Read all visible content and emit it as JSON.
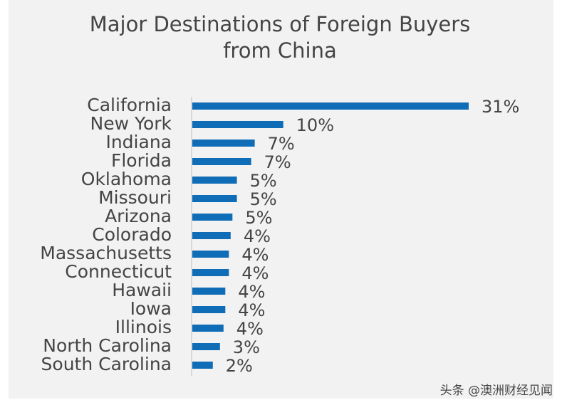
{
  "chart_data": {
    "type": "bar",
    "orientation": "horizontal",
    "title": [
      "Major Destinations of Foreign Buyers",
      "from China"
    ],
    "categories": [
      "California",
      "New York",
      "Indiana",
      "Florida",
      "Oklahoma",
      "Missouri",
      "Arizona",
      "Colorado",
      "Massachusetts",
      "Connecticut",
      "Hawaii",
      "Iowa",
      "Illinois",
      "North Carolina",
      "South Carolina"
    ],
    "values": [
      31,
      10.2,
      7,
      6.6,
      5,
      5,
      4.5,
      4.3,
      4.1,
      4.1,
      3.7,
      3.7,
      3.5,
      3.1,
      2.3
    ],
    "value_labels": [
      "31%",
      "10%",
      "7%",
      "7%",
      "5%",
      "5%",
      "5%",
      "4%",
      "4%",
      "4%",
      "4%",
      "4%",
      "4%",
      "3%",
      "2%"
    ],
    "color": "#0f6cb6"
  },
  "watermark": "头条 @澳洲财经见闻"
}
